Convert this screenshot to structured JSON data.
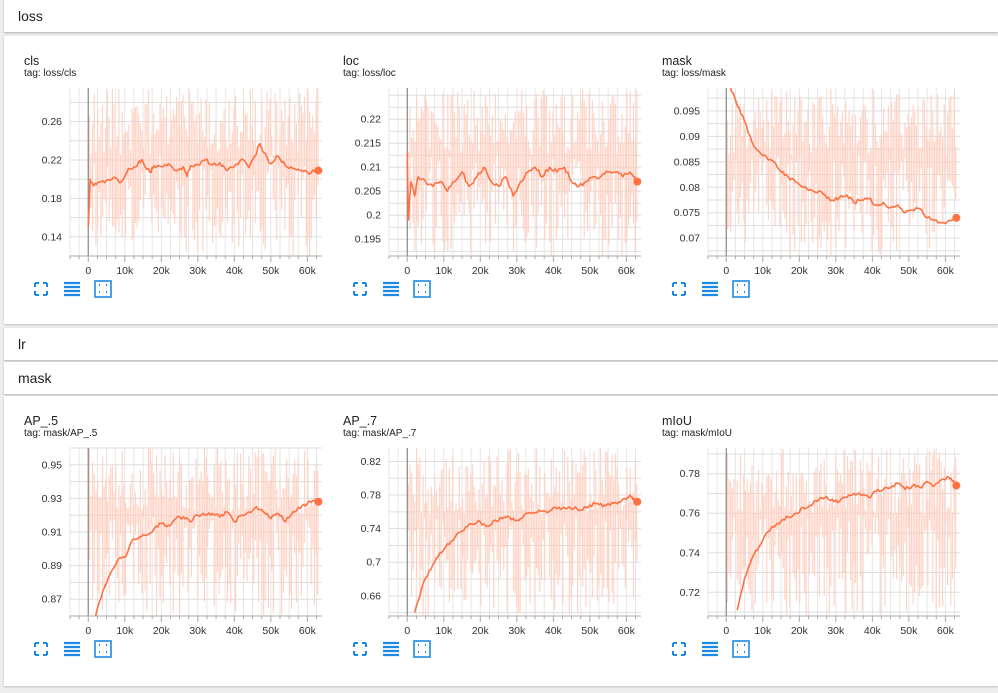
{
  "sections": {
    "loss": {
      "title": "loss"
    },
    "lr": {
      "title": "lr"
    },
    "mask": {
      "title": "mask"
    }
  },
  "colors": {
    "line": "#ff7043",
    "raw": "#ffccbc",
    "grid": "#dddddd",
    "axis": "#aaaaaa",
    "button": "#1e88e5"
  },
  "icons": [
    "fit-domain-icon",
    "toggle-log-scale-icon",
    "expand-chart-icon"
  ],
  "chart_data": [
    {
      "id": "cls",
      "type": "line",
      "title": "cls",
      "tag": "tag: loss/cls",
      "xlim": [
        -5000,
        64000
      ],
      "ylim": [
        0.12,
        0.295
      ],
      "xticks": [
        0,
        10000,
        20000,
        30000,
        40000,
        50000,
        60000
      ],
      "xtick_labels": [
        "0",
        "10k",
        "20k",
        "30k",
        "40k",
        "50k",
        "60k"
      ],
      "yticks": [
        0.14,
        0.18,
        0.22,
        0.26
      ],
      "ytick_labels": [
        "0.14",
        "0.18",
        "0.22",
        "0.26"
      ],
      "raw_range": [
        0.12,
        0.295
      ],
      "series": [
        {
          "x": [
            0,
            500,
            1500,
            3000,
            5000,
            7000,
            9000,
            11000,
            13000,
            14000,
            15000,
            17000,
            18000,
            20000,
            22000,
            24000,
            26000,
            27000,
            28000,
            30000,
            32000,
            34000,
            36000,
            38000,
            40000,
            42000,
            44000,
            46000,
            47000,
            48000,
            50000,
            52000,
            54000,
            56000,
            58000,
            60000,
            62000,
            63000
          ],
          "y": [
            0.15,
            0.2,
            0.193,
            0.197,
            0.199,
            0.202,
            0.197,
            0.211,
            0.213,
            0.219,
            0.218,
            0.207,
            0.214,
            0.213,
            0.216,
            0.209,
            0.213,
            0.203,
            0.214,
            0.215,
            0.22,
            0.215,
            0.217,
            0.209,
            0.213,
            0.221,
            0.212,
            0.226,
            0.237,
            0.228,
            0.216,
            0.224,
            0.214,
            0.211,
            0.209,
            0.207,
            0.208,
            0.209
          ]
        }
      ]
    },
    {
      "id": "loc",
      "type": "line",
      "title": "loc",
      "tag": "tag: loss/loc",
      "xlim": [
        -5000,
        64000
      ],
      "ylim": [
        0.1915,
        0.2265
      ],
      "xticks": [
        0,
        10000,
        20000,
        30000,
        40000,
        50000,
        60000
      ],
      "xtick_labels": [
        "0",
        "10k",
        "20k",
        "30k",
        "40k",
        "50k",
        "60k"
      ],
      "yticks": [
        0.195,
        0.2,
        0.205,
        0.21,
        0.215,
        0.22
      ],
      "ytick_labels": [
        "0.195",
        "0.2",
        "0.205",
        "0.21",
        "0.215",
        "0.22"
      ],
      "raw_range": [
        0.1915,
        0.2265
      ],
      "series": [
        {
          "x": [
            0,
            300,
            600,
            1000,
            2000,
            3000,
            5000,
            7000,
            9000,
            11000,
            13000,
            15000,
            17000,
            19000,
            21000,
            23000,
            25000,
            27000,
            29000,
            31000,
            33000,
            35000,
            37000,
            39000,
            41000,
            43000,
            45000,
            47000,
            49000,
            51000,
            53000,
            55000,
            57000,
            59000,
            61000,
            62000,
            63000
          ],
          "y": [
            0.213,
            0.199,
            0.203,
            0.207,
            0.204,
            0.208,
            0.207,
            0.206,
            0.207,
            0.205,
            0.207,
            0.209,
            0.206,
            0.208,
            0.21,
            0.207,
            0.206,
            0.208,
            0.204,
            0.207,
            0.209,
            0.21,
            0.208,
            0.21,
            0.209,
            0.21,
            0.207,
            0.206,
            0.207,
            0.208,
            0.208,
            0.209,
            0.209,
            0.208,
            0.209,
            0.208,
            0.207
          ]
        }
      ]
    },
    {
      "id": "mask-loss",
      "type": "line",
      "title": "mask",
      "tag": "tag: loss/mask",
      "xlim": [
        -5000,
        64000
      ],
      "ylim": [
        0.0665,
        0.0995
      ],
      "xticks": [
        0,
        10000,
        20000,
        30000,
        40000,
        50000,
        60000
      ],
      "xtick_labels": [
        "0",
        "10k",
        "20k",
        "30k",
        "40k",
        "50k",
        "60k"
      ],
      "yticks": [
        0.07,
        0.075,
        0.08,
        0.085,
        0.09,
        0.095
      ],
      "ytick_labels": [
        "0.07",
        "0.075",
        "0.08",
        "0.085",
        "0.09",
        "0.095"
      ],
      "raw_range": [
        0.0665,
        0.0995
      ],
      "series": [
        {
          "x": [
            1000,
            3000,
            5000,
            7000,
            9000,
            11000,
            13000,
            15000,
            17000,
            19000,
            21000,
            23000,
            25000,
            27000,
            29000,
            31000,
            33000,
            35000,
            37000,
            39000,
            41000,
            43000,
            45000,
            47000,
            49000,
            51000,
            53000,
            55000,
            57000,
            59000,
            61000,
            63000
          ],
          "y": [
            0.1,
            0.096,
            0.093,
            0.089,
            0.087,
            0.086,
            0.085,
            0.083,
            0.082,
            0.081,
            0.08,
            0.0795,
            0.079,
            0.0785,
            0.0775,
            0.078,
            0.0785,
            0.077,
            0.0775,
            0.0778,
            0.0765,
            0.077,
            0.076,
            0.0765,
            0.075,
            0.0755,
            0.0758,
            0.074,
            0.0735,
            0.073,
            0.0735,
            0.074
          ]
        }
      ]
    },
    {
      "id": "ap5",
      "type": "line",
      "title": "AP_.5",
      "tag": "tag: mask/AP_.5",
      "xlim": [
        -5000,
        64000
      ],
      "ylim": [
        0.86,
        0.96
      ],
      "xticks": [
        0,
        10000,
        20000,
        30000,
        40000,
        50000,
        60000
      ],
      "xtick_labels": [
        "0",
        "10k",
        "20k",
        "30k",
        "40k",
        "50k",
        "60k"
      ],
      "yticks": [
        0.87,
        0.89,
        0.91,
        0.93,
        0.95
      ],
      "ytick_labels": [
        "0.87",
        "0.89",
        "0.91",
        "0.93",
        "0.95"
      ],
      "raw_range": [
        0.86,
        0.96
      ],
      "series": [
        {
          "x": [
            2000,
            4000,
            6000,
            8000,
            10000,
            12000,
            14000,
            16000,
            18000,
            20000,
            22000,
            24000,
            26000,
            28000,
            30000,
            32000,
            34000,
            36000,
            38000,
            40000,
            42000,
            44000,
            46000,
            48000,
            50000,
            52000,
            54000,
            56000,
            58000,
            60000,
            62000,
            63000
          ],
          "y": [
            0.86,
            0.875,
            0.885,
            0.893,
            0.895,
            0.905,
            0.907,
            0.908,
            0.912,
            0.915,
            0.914,
            0.918,
            0.919,
            0.916,
            0.92,
            0.92,
            0.921,
            0.919,
            0.922,
            0.916,
            0.92,
            0.922,
            0.925,
            0.922,
            0.918,
            0.921,
            0.916,
            0.922,
            0.924,
            0.927,
            0.929,
            0.928
          ]
        }
      ]
    },
    {
      "id": "ap7",
      "type": "line",
      "title": "AP_.7",
      "tag": "tag: mask/AP_.7",
      "xlim": [
        -5000,
        64000
      ],
      "ylim": [
        0.636,
        0.836
      ],
      "xticks": [
        0,
        10000,
        20000,
        30000,
        40000,
        50000,
        60000
      ],
      "xtick_labels": [
        "0",
        "10k",
        "20k",
        "30k",
        "40k",
        "50k",
        "60k"
      ],
      "yticks": [
        0.66,
        0.7,
        0.74,
        0.78,
        0.82
      ],
      "ytick_labels": [
        "0.66",
        "0.7",
        "0.74",
        "0.78",
        "0.82"
      ],
      "raw_range": [
        0.636,
        0.836
      ],
      "series": [
        {
          "x": [
            2000,
            4000,
            6000,
            8000,
            10000,
            12000,
            14000,
            16000,
            18000,
            20000,
            22000,
            24000,
            26000,
            28000,
            30000,
            32000,
            34000,
            36000,
            38000,
            40000,
            42000,
            44000,
            46000,
            48000,
            50000,
            52000,
            54000,
            56000,
            58000,
            60000,
            61000,
            62000,
            63000
          ],
          "y": [
            0.64,
            0.67,
            0.69,
            0.705,
            0.715,
            0.725,
            0.735,
            0.742,
            0.745,
            0.748,
            0.743,
            0.75,
            0.752,
            0.754,
            0.75,
            0.756,
            0.758,
            0.762,
            0.76,
            0.765,
            0.763,
            0.765,
            0.766,
            0.762,
            0.768,
            0.77,
            0.768,
            0.771,
            0.772,
            0.775,
            0.78,
            0.776,
            0.772
          ]
        }
      ]
    },
    {
      "id": "miou",
      "type": "line",
      "title": "mIoU",
      "tag": "tag: mask/mIoU",
      "xlim": [
        -5000,
        64000
      ],
      "ylim": [
        0.708,
        0.793
      ],
      "xticks": [
        0,
        10000,
        20000,
        30000,
        40000,
        50000,
        60000
      ],
      "xtick_labels": [
        "0",
        "10k",
        "20k",
        "30k",
        "40k",
        "50k",
        "60k"
      ],
      "yticks": [
        0.72,
        0.74,
        0.76,
        0.78
      ],
      "ytick_labels": [
        "0.72",
        "0.74",
        "0.76",
        "0.78"
      ],
      "raw_range": [
        0.708,
        0.793
      ],
      "series": [
        {
          "x": [
            3000,
            5000,
            7000,
            9000,
            11000,
            13000,
            15000,
            17000,
            19000,
            21000,
            23000,
            25000,
            27000,
            29000,
            31000,
            33000,
            35000,
            37000,
            39000,
            41000,
            43000,
            45000,
            47000,
            49000,
            51000,
            53000,
            55000,
            57000,
            59000,
            61000,
            62000,
            63000
          ],
          "y": [
            0.711,
            0.727,
            0.737,
            0.743,
            0.75,
            0.753,
            0.756,
            0.758,
            0.76,
            0.763,
            0.764,
            0.766,
            0.768,
            0.767,
            0.766,
            0.768,
            0.77,
            0.769,
            0.768,
            0.771,
            0.772,
            0.773,
            0.775,
            0.772,
            0.774,
            0.773,
            0.776,
            0.774,
            0.777,
            0.778,
            0.776,
            0.774
          ]
        }
      ]
    }
  ]
}
